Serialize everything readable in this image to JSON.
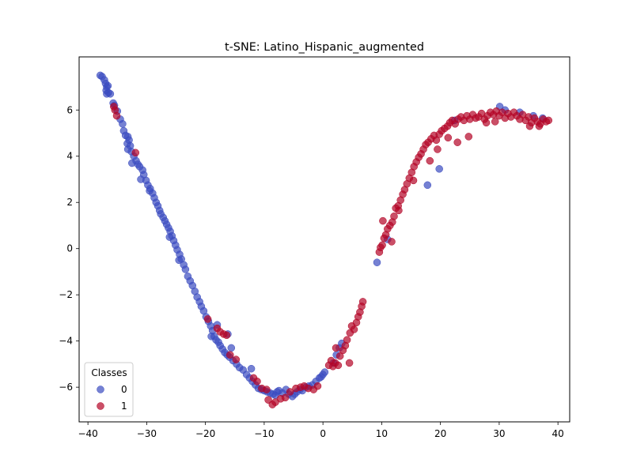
{
  "chart_data": {
    "type": "scatter",
    "title": "t-SNE: Latino_Hispanic_augmented",
    "xlabel": "",
    "ylabel": "",
    "xlim": [
      -41.5,
      42.0
    ],
    "ylim": [
      -7.5,
      8.3
    ],
    "xticks": [
      -40,
      -30,
      -20,
      -10,
      0,
      10,
      20,
      30,
      40
    ],
    "yticks": [
      -6,
      -4,
      -2,
      0,
      2,
      4,
      6
    ],
    "xtick_labels": [
      "−40",
      "−30",
      "−20",
      "−10",
      "0",
      "10",
      "20",
      "30",
      "40"
    ],
    "ytick_labels": [
      "−6",
      "−4",
      "−2",
      "0",
      "2",
      "4",
      "6"
    ],
    "grid": false,
    "legend": {
      "title": "Classes",
      "placement": "lower-left"
    },
    "series": [
      {
        "name": "0",
        "color": "#3b4cc0",
        "points": [
          [
            -37.9,
            7.5
          ],
          [
            -37.6,
            7.45
          ],
          [
            -37.2,
            7.3
          ],
          [
            -37.0,
            7.15
          ],
          [
            -36.8,
            7.0
          ],
          [
            -36.6,
            7.05
          ],
          [
            -36.9,
            6.85
          ],
          [
            -36.5,
            6.75
          ],
          [
            -36.8,
            6.7
          ],
          [
            -36.2,
            6.7
          ],
          [
            -35.7,
            6.3
          ],
          [
            -35.5,
            6.2
          ],
          [
            -35.0,
            5.95
          ],
          [
            -34.5,
            5.6
          ],
          [
            -34.1,
            5.4
          ],
          [
            -33.9,
            5.1
          ],
          [
            -33.6,
            4.9
          ],
          [
            -33.2,
            4.85
          ],
          [
            -33.0,
            4.7
          ],
          [
            -33.3,
            4.55
          ],
          [
            -32.8,
            4.45
          ],
          [
            -33.2,
            4.3
          ],
          [
            -32.6,
            4.2
          ],
          [
            -32.2,
            4.0
          ],
          [
            -31.8,
            3.8
          ],
          [
            -31.5,
            3.65
          ],
          [
            -31.2,
            3.55
          ],
          [
            -30.7,
            3.4
          ],
          [
            -30.5,
            3.2
          ],
          [
            -30.1,
            2.95
          ],
          [
            -29.8,
            2.75
          ],
          [
            -29.4,
            2.6
          ],
          [
            -29.0,
            2.4
          ],
          [
            -28.7,
            2.2
          ],
          [
            -28.4,
            2.0
          ],
          [
            -28.1,
            1.85
          ],
          [
            -27.8,
            1.65
          ],
          [
            -27.6,
            1.5
          ],
          [
            -27.2,
            1.35
          ],
          [
            -26.9,
            1.2
          ],
          [
            -26.6,
            1.05
          ],
          [
            -26.3,
            0.9
          ],
          [
            -26.0,
            0.75
          ],
          [
            -25.7,
            0.55
          ],
          [
            -25.4,
            0.35
          ],
          [
            -25.1,
            0.15
          ],
          [
            -24.8,
            -0.05
          ],
          [
            -24.4,
            -0.25
          ],
          [
            -24.1,
            -0.45
          ],
          [
            -23.7,
            -0.7
          ],
          [
            -23.4,
            -0.9
          ],
          [
            -23.0,
            -1.2
          ],
          [
            -22.6,
            -1.4
          ],
          [
            -22.2,
            -1.6
          ],
          [
            -21.8,
            -1.85
          ],
          [
            -21.4,
            -2.1
          ],
          [
            -21.0,
            -2.3
          ],
          [
            -20.7,
            -2.5
          ],
          [
            -20.3,
            -2.7
          ],
          [
            -19.9,
            -2.95
          ],
          [
            -19.5,
            -3.15
          ],
          [
            -19.1,
            -3.35
          ],
          [
            -18.8,
            -3.55
          ],
          [
            -18.5,
            -3.8
          ],
          [
            -18.2,
            -3.95
          ],
          [
            -17.8,
            -4.05
          ],
          [
            -17.5,
            -4.2
          ],
          [
            -17.1,
            -4.35
          ],
          [
            -16.7,
            -4.5
          ],
          [
            -16.3,
            -4.6
          ],
          [
            -15.9,
            -4.7
          ],
          [
            -15.3,
            -4.85
          ],
          [
            -14.7,
            -5.0
          ],
          [
            -14.2,
            -5.15
          ],
          [
            -13.6,
            -5.25
          ],
          [
            -13.0,
            -5.45
          ],
          [
            -12.5,
            -5.6
          ],
          [
            -12.0,
            -5.75
          ],
          [
            -11.5,
            -5.9
          ],
          [
            -11.0,
            -6.05
          ],
          [
            -10.5,
            -6.1
          ],
          [
            -10.0,
            -6.15
          ],
          [
            -9.5,
            -6.2
          ],
          [
            -9.0,
            -6.25
          ],
          [
            -8.5,
            -6.3
          ],
          [
            -8.1,
            -6.35
          ],
          [
            -7.8,
            -6.2
          ],
          [
            -7.5,
            -6.15
          ],
          [
            -6.9,
            -6.25
          ],
          [
            -6.3,
            -6.1
          ],
          [
            -5.8,
            -6.3
          ],
          [
            -5.2,
            -6.4
          ],
          [
            -4.8,
            -6.3
          ],
          [
            -4.4,
            -6.2
          ],
          [
            -3.9,
            -6.1
          ],
          [
            -3.5,
            -6.15
          ],
          [
            -2.9,
            -6.0
          ],
          [
            -2.4,
            -5.95
          ],
          [
            -1.8,
            -5.9
          ],
          [
            -1.2,
            -5.75
          ],
          [
            -0.6,
            -5.6
          ],
          [
            0.0,
            -5.45
          ],
          [
            0.3,
            -5.35
          ],
          [
            -0.3,
            -5.55
          ],
          [
            1.8,
            -4.95
          ],
          [
            2.3,
            -4.6
          ],
          [
            2.8,
            -4.3
          ],
          [
            3.2,
            -4.1
          ],
          [
            -16.2,
            -3.7
          ],
          [
            -18.0,
            -3.3
          ],
          [
            -19.0,
            -3.8
          ],
          [
            -12.2,
            -5.2
          ],
          [
            -24.5,
            -0.5
          ],
          [
            -26.1,
            0.5
          ],
          [
            -29.5,
            2.5
          ],
          [
            -31.0,
            3.0
          ],
          [
            -32.5,
            3.7
          ],
          [
            -15.6,
            -4.3
          ],
          [
            9.2,
            -0.6
          ],
          [
            11.0,
            0.4
          ],
          [
            17.8,
            2.75
          ],
          [
            19.8,
            3.45
          ],
          [
            22.4,
            5.55
          ],
          [
            30.1,
            6.15
          ],
          [
            31.0,
            6.0
          ],
          [
            33.5,
            5.9
          ],
          [
            35.8,
            5.75
          ],
          [
            37.4,
            5.65
          ]
        ]
      },
      {
        "name": "1",
        "color": "#b40426",
        "points": [
          [
            -35.6,
            6.15
          ],
          [
            -35.4,
            6.0
          ],
          [
            -35.1,
            5.75
          ],
          [
            -31.9,
            4.15
          ],
          [
            -19.6,
            -3.05
          ],
          [
            -18.0,
            -3.45
          ],
          [
            -17.5,
            -3.6
          ],
          [
            -16.9,
            -3.7
          ],
          [
            -16.4,
            -3.75
          ],
          [
            -15.8,
            -4.6
          ],
          [
            -14.8,
            -4.8
          ],
          [
            -11.8,
            -5.6
          ],
          [
            -11.2,
            -5.75
          ],
          [
            -10.4,
            -6.05
          ],
          [
            -9.6,
            -6.1
          ],
          [
            -9.3,
            -6.55
          ],
          [
            -8.6,
            -6.75
          ],
          [
            -8.1,
            -6.65
          ],
          [
            -7.2,
            -6.5
          ],
          [
            -6.4,
            -6.45
          ],
          [
            -5.6,
            -6.2
          ],
          [
            -4.6,
            -6.05
          ],
          [
            -3.8,
            -6.0
          ],
          [
            -3.2,
            -5.95
          ],
          [
            -2.5,
            -6.05
          ],
          [
            -1.6,
            -6.1
          ],
          [
            -0.9,
            -5.95
          ],
          [
            1.0,
            -5.05
          ],
          [
            1.4,
            -4.85
          ],
          [
            1.7,
            -5.1
          ],
          [
            2.1,
            -4.95
          ],
          [
            2.6,
            -5.05
          ],
          [
            2.9,
            -4.65
          ],
          [
            3.4,
            -4.4
          ],
          [
            3.8,
            -4.2
          ],
          [
            4.1,
            -3.95
          ],
          [
            4.6,
            -3.65
          ],
          [
            4.9,
            -3.35
          ],
          [
            5.3,
            -3.5
          ],
          [
            5.7,
            -3.2
          ],
          [
            6.0,
            -2.95
          ],
          [
            6.3,
            -2.75
          ],
          [
            6.6,
            -2.5
          ],
          [
            6.8,
            -2.3
          ],
          [
            4.5,
            -4.95
          ],
          [
            2.2,
            -4.3
          ],
          [
            9.6,
            -0.15
          ],
          [
            9.8,
            0.05
          ],
          [
            10.1,
            0.15
          ],
          [
            10.4,
            0.45
          ],
          [
            10.7,
            0.6
          ],
          [
            11.0,
            0.85
          ],
          [
            10.2,
            1.2
          ],
          [
            11.4,
            1.0
          ],
          [
            11.8,
            1.15
          ],
          [
            12.1,
            1.4
          ],
          [
            12.4,
            1.75
          ],
          [
            12.8,
            1.85
          ],
          [
            13.2,
            2.1
          ],
          [
            13.6,
            2.35
          ],
          [
            13.9,
            2.55
          ],
          [
            14.3,
            2.8
          ],
          [
            14.7,
            3.05
          ],
          [
            15.1,
            3.3
          ],
          [
            15.5,
            3.55
          ],
          [
            15.9,
            3.75
          ],
          [
            16.3,
            3.95
          ],
          [
            16.7,
            4.1
          ],
          [
            17.1,
            4.3
          ],
          [
            17.5,
            4.5
          ],
          [
            17.9,
            4.6
          ],
          [
            18.4,
            4.75
          ],
          [
            18.9,
            4.9
          ],
          [
            19.3,
            4.7
          ],
          [
            19.8,
            4.95
          ],
          [
            20.2,
            5.1
          ],
          [
            20.7,
            5.2
          ],
          [
            21.2,
            5.3
          ],
          [
            21.6,
            5.45
          ],
          [
            22.0,
            5.55
          ],
          [
            22.5,
            5.4
          ],
          [
            23.0,
            5.6
          ],
          [
            23.5,
            5.7
          ],
          [
            24.0,
            5.55
          ],
          [
            24.5,
            5.75
          ],
          [
            25.0,
            5.6
          ],
          [
            25.5,
            5.8
          ],
          [
            26.0,
            5.65
          ],
          [
            26.5,
            5.7
          ],
          [
            27.0,
            5.85
          ],
          [
            27.5,
            5.6
          ],
          [
            28.0,
            5.75
          ],
          [
            28.5,
            5.9
          ],
          [
            29.0,
            5.8
          ],
          [
            29.5,
            5.95
          ],
          [
            30.0,
            5.75
          ],
          [
            30.5,
            5.9
          ],
          [
            31.0,
            5.65
          ],
          [
            31.5,
            5.85
          ],
          [
            32.0,
            5.7
          ],
          [
            32.5,
            5.9
          ],
          [
            33.0,
            5.75
          ],
          [
            33.5,
            5.6
          ],
          [
            34.0,
            5.8
          ],
          [
            34.5,
            5.55
          ],
          [
            35.0,
            5.7
          ],
          [
            35.5,
            5.45
          ],
          [
            36.0,
            5.65
          ],
          [
            36.5,
            5.5
          ],
          [
            37.0,
            5.4
          ],
          [
            37.5,
            5.6
          ],
          [
            38.0,
            5.5
          ],
          [
            38.4,
            5.55
          ],
          [
            35.2,
            5.3
          ],
          [
            36.8,
            5.3
          ],
          [
            29.3,
            5.5
          ],
          [
            27.8,
            5.45
          ],
          [
            24.8,
            4.85
          ],
          [
            22.9,
            4.6
          ],
          [
            21.3,
            4.8
          ],
          [
            19.5,
            4.3
          ],
          [
            18.2,
            3.8
          ],
          [
            15.4,
            2.95
          ],
          [
            12.9,
            1.65
          ],
          [
            11.7,
            0.3
          ]
        ]
      }
    ]
  }
}
